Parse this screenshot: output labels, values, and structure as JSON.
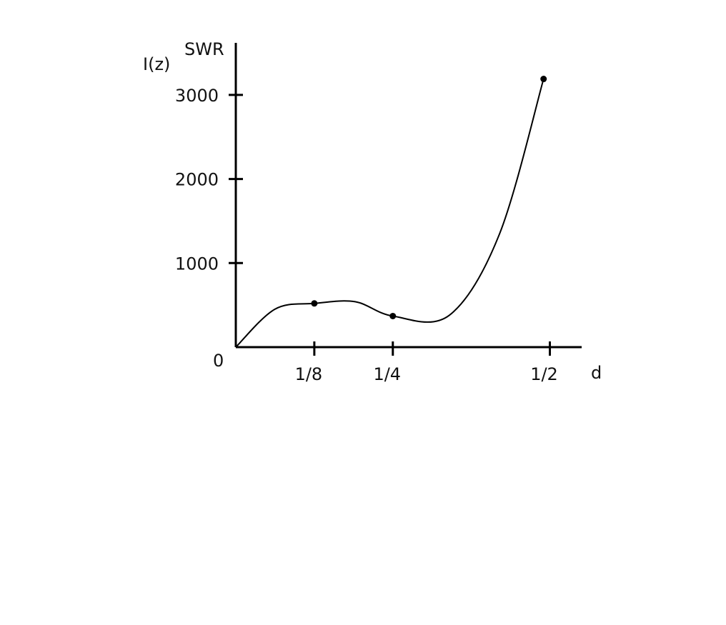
{
  "chart_data": {
    "type": "line",
    "title": "",
    "ylabel_secondary": "I(z)",
    "ylabel": "SWR",
    "xlabel": "d",
    "origin_label": "0",
    "xlim": [
      0,
      0.56
    ],
    "ylim": [
      0,
      3500
    ],
    "x_ticks": [
      {
        "value": 0.125,
        "label": "1/8"
      },
      {
        "value": 0.25,
        "label": "1/4"
      },
      {
        "value": 0.5,
        "label": "1/2"
      }
    ],
    "y_ticks": [
      {
        "value": 1000,
        "label": "1000"
      },
      {
        "value": 2000,
        "label": "2000"
      },
      {
        "value": 3000,
        "label": "3000"
      }
    ],
    "grid": false,
    "legend": "none",
    "series": [
      {
        "points": [
          {
            "x": 0,
            "y": 0
          },
          {
            "x": 0.062,
            "y": 450
          },
          {
            "x": 0.125,
            "y": 520
          },
          {
            "x": 0.19,
            "y": 540
          },
          {
            "x": 0.25,
            "y": 370
          },
          {
            "x": 0.34,
            "y": 380
          },
          {
            "x": 0.42,
            "y": 1350
          },
          {
            "x": 0.49,
            "y": 3190
          }
        ],
        "markers": [
          {
            "x": 0.125,
            "y": 520
          },
          {
            "x": 0.25,
            "y": 370
          },
          {
            "x": 0.49,
            "y": 3190
          }
        ]
      }
    ]
  }
}
